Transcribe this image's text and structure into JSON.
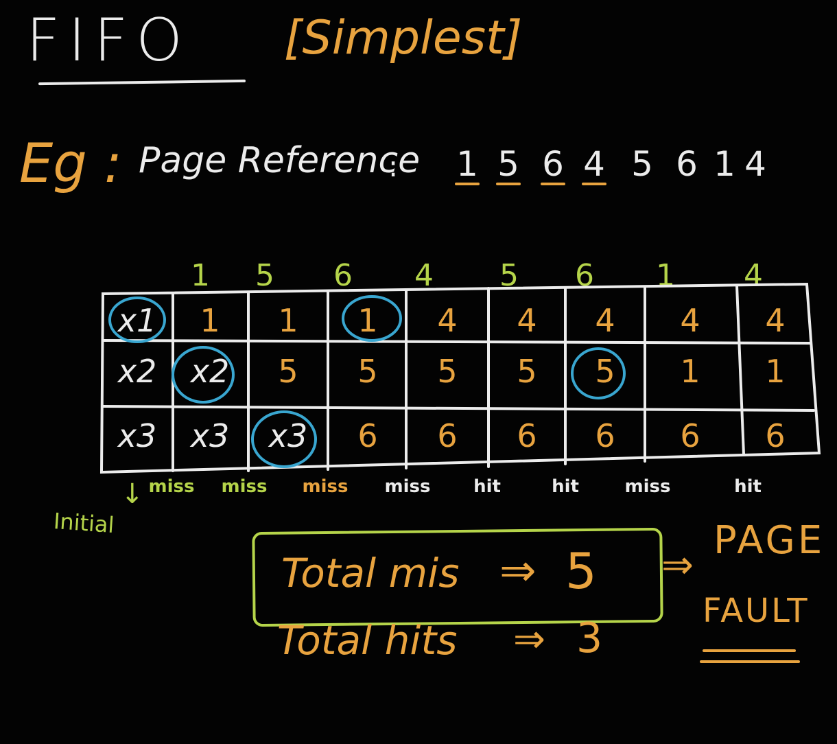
{
  "title": "FIFO",
  "subtitle": "[Simplest]",
  "example": {
    "label": "Eg :",
    "page_reference_label": "Page Reference",
    "colon": ":",
    "sequence": [
      "1",
      "5",
      "6",
      "4",
      "5",
      "6",
      "1",
      "4"
    ]
  },
  "table": {
    "column_headers": [
      "1",
      "5",
      "6",
      "4",
      "5",
      "6",
      "1",
      "4"
    ],
    "rows": [
      [
        "x1",
        "1",
        "1",
        "1",
        "4",
        "4",
        "4",
        "4",
        "4"
      ],
      [
        "x2",
        "x2",
        "5",
        "5",
        "5",
        "5",
        "5",
        "1",
        "1"
      ],
      [
        "x3",
        "x3",
        "x3",
        "6",
        "6",
        "6",
        "6",
        "6",
        "6"
      ]
    ],
    "status": [
      "miss",
      "miss",
      "miss",
      "miss",
      "hit",
      "hit",
      "miss",
      "hit"
    ],
    "initial_label": "Initial",
    "initial_arrow": "↓"
  },
  "summary": {
    "miss_label": "Total mis",
    "miss_arrow": "⇒",
    "miss_value": "5",
    "hits_label": "Total hits",
    "hits_arrow": "⇒",
    "hits_value": "3",
    "page_fault_arrow": "⇒",
    "page_fault_line1": "PAGE",
    "page_fault_line2": "FAULT"
  },
  "colors": {
    "background": "#030303",
    "chalk_white": "#ececec",
    "chalk_orange": "#e8a33f",
    "chalk_green": "#b5d44a",
    "chalk_blue": "#39a6d0"
  }
}
